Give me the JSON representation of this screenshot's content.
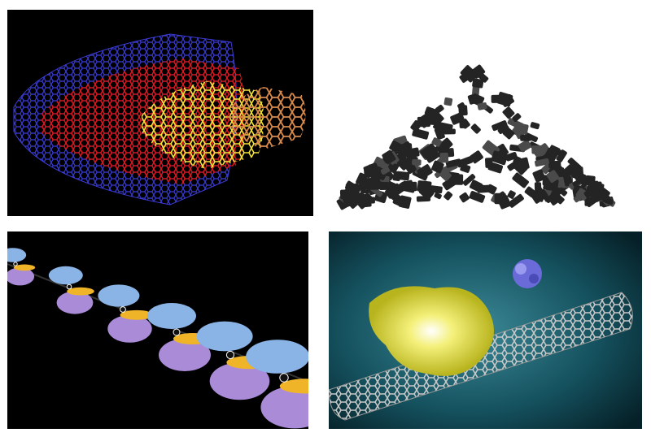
{
  "panels": [
    {
      "id": "nested-nanotube-model",
      "palette": {
        "background": "#000000",
        "outer": "#3b3bd6",
        "middle": "#e01818",
        "inner": "#f2e23a",
        "core": "#d9894a"
      }
    },
    {
      "id": "carbon-granules-photo",
      "palette": {
        "background": "#ffffff",
        "granule": "#242424",
        "highlight": "#4a4a4a"
      }
    },
    {
      "id": "orbital-chain-model",
      "palette": {
        "background": "#000000",
        "lobe_blue": "#8ab4e6",
        "lobe_violet": "#a98bd8",
        "bond_yellow": "#f0b429"
      }
    },
    {
      "id": "nanotube-protein-render",
      "palette": {
        "background": "#0c3a44",
        "tube": "#bdbdbd",
        "protein_yellow": "#e8e43a",
        "protein_blue": "#6a6ad8"
      }
    }
  ]
}
